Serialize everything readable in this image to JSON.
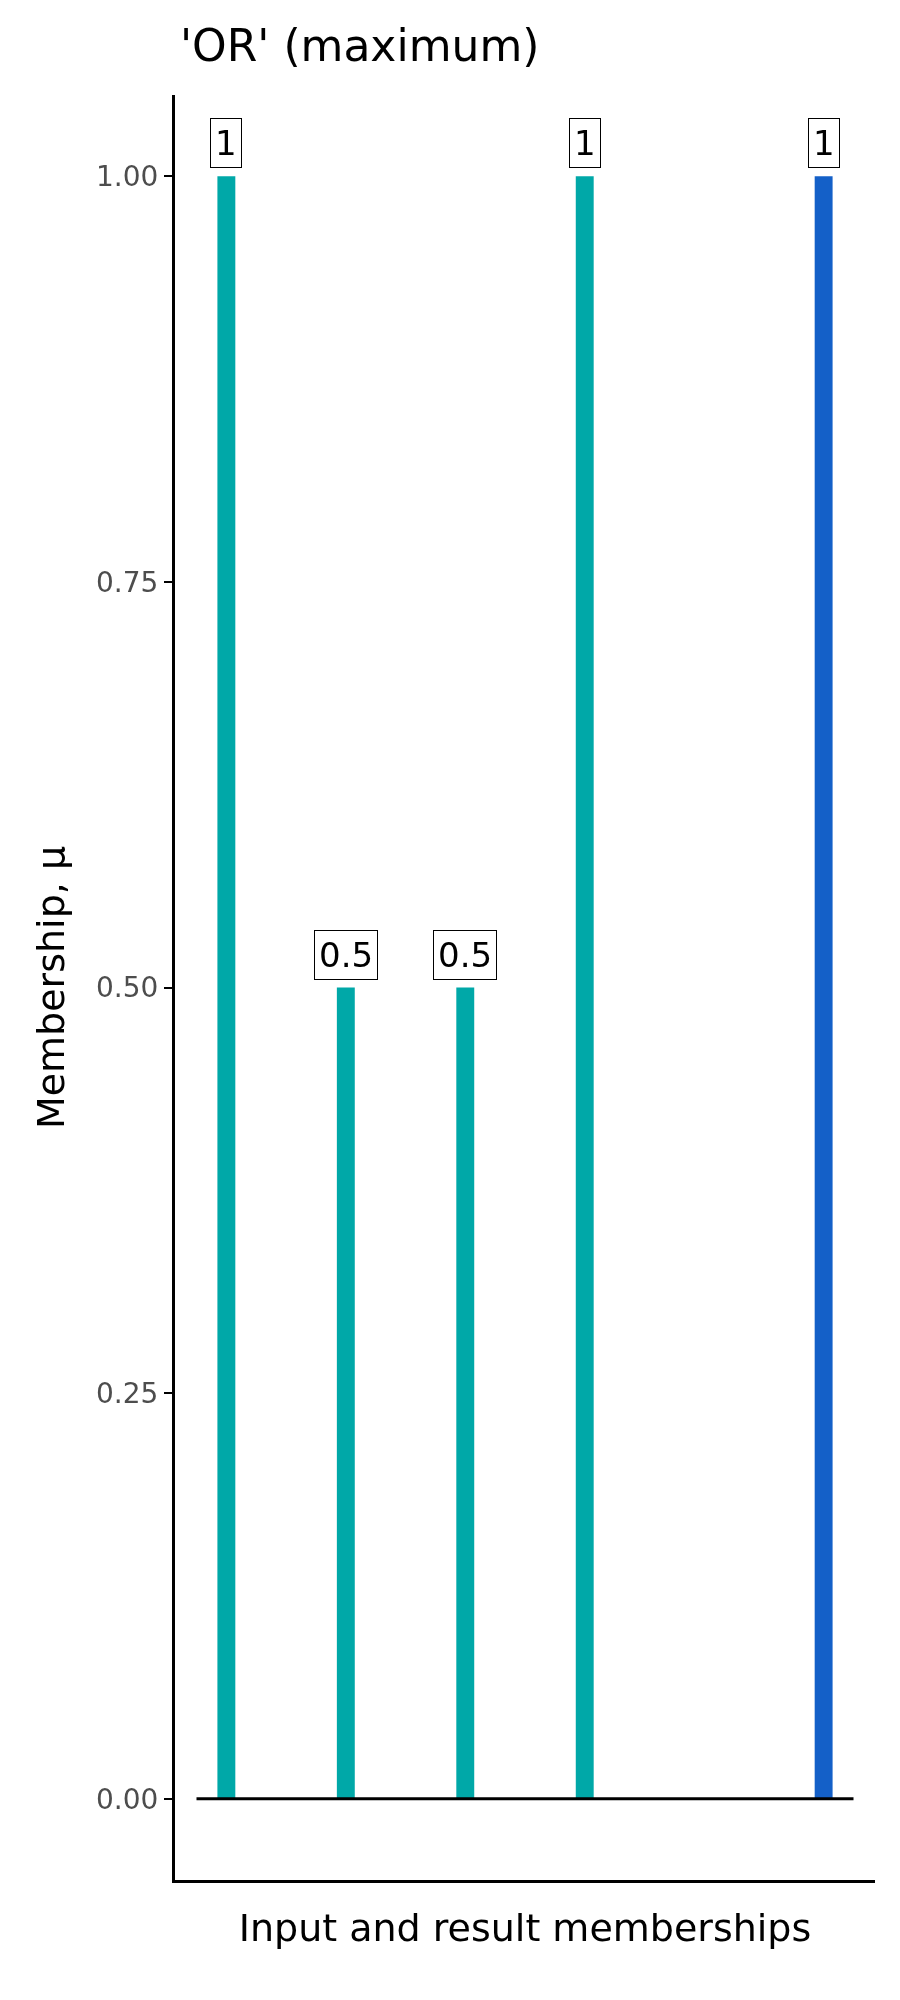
{
  "chart_data": {
    "type": "bar",
    "title": "'OR' (maximum)",
    "xlabel": "Input and result memberships",
    "ylabel": "Membership, μ",
    "categories": [
      null,
      null,
      null,
      null,
      null,
      null
    ],
    "values": [
      1,
      0.5,
      0.5,
      1,
      null,
      1
    ],
    "colors": [
      "#00a8a8",
      "#00a8a8",
      "#00a8a8",
      "#00a8a8",
      "#00a8a8",
      "#1460c8"
    ],
    "ylim": [
      -0.05,
      1.05
    ],
    "yticks": [
      {
        "value": 0,
        "label": "0.00"
      },
      {
        "value": 0.25,
        "label": "0.25"
      },
      {
        "value": 0.5,
        "label": "0.50"
      },
      {
        "value": 0.75,
        "label": "0.75"
      },
      {
        "value": 1,
        "label": "1.00"
      }
    ],
    "ref_lines": [
      {
        "axis": "y",
        "value": 0,
        "color": "#000000"
      }
    ],
    "tick_labels": "y",
    "legend": false,
    "data_labels": true
  }
}
